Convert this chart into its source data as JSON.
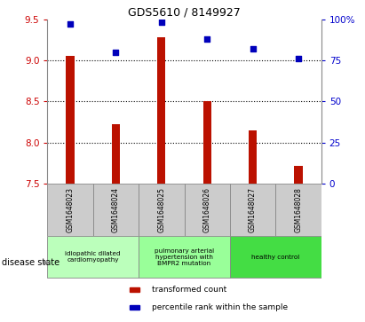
{
  "title": "GDS5610 / 8149927",
  "samples": [
    "GSM1648023",
    "GSM1648024",
    "GSM1648025",
    "GSM1648026",
    "GSM1648027",
    "GSM1648028"
  ],
  "bar_values": [
    9.05,
    8.22,
    9.28,
    8.5,
    8.15,
    7.72
  ],
  "scatter_values": [
    97,
    80,
    98,
    88,
    82,
    76
  ],
  "bar_color": "#bb1100",
  "scatter_color": "#0000bb",
  "ylim_left": [
    7.5,
    9.5
  ],
  "ylim_right": [
    0,
    100
  ],
  "yticks_left": [
    7.5,
    8.0,
    8.5,
    9.0,
    9.5
  ],
  "yticks_right": [
    0,
    25,
    50,
    75,
    100
  ],
  "ytick_labels_right": [
    "0",
    "25",
    "50",
    "75",
    "100%"
  ],
  "grid_vals": [
    8.0,
    8.5,
    9.0
  ],
  "disease_groups": [
    {
      "label": "idiopathic dilated\ncardiomyopathy",
      "cols": [
        0,
        1
      ],
      "color": "#bbffbb"
    },
    {
      "label": "pulmonary arterial\nhypertension with\nBMPR2 mutation",
      "cols": [
        2,
        3
      ],
      "color": "#99ff99"
    },
    {
      "label": "healthy control",
      "cols": [
        4,
        5
      ],
      "color": "#44dd44"
    }
  ],
  "legend_bar_label": "transformed count",
  "legend_scatter_label": "percentile rank within the sample",
  "disease_state_label": "disease state",
  "tick_color_left": "#cc0000",
  "tick_color_right": "#0000cc",
  "bg_table": "#cccccc",
  "bar_width": 0.18
}
